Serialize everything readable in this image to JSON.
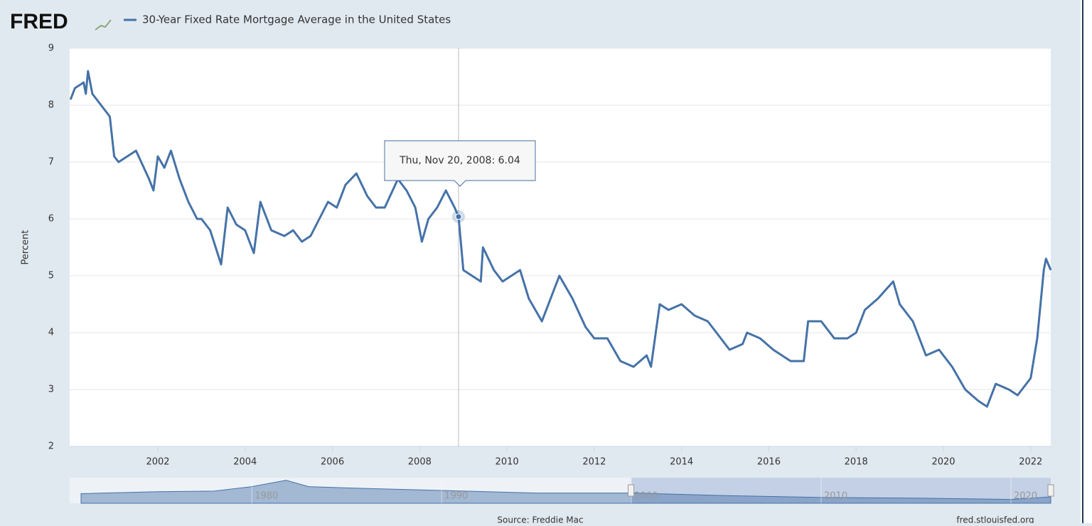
{
  "chart_data": {
    "type": "line",
    "logo": "FRED",
    "y_label": "Percent",
    "source": "Source: Freddie Mac",
    "site": "fred.stlouisfed.org",
    "xlim": [
      1999.98,
      2022.46
    ],
    "xticks": [
      2002,
      2004,
      2006,
      2008,
      2010,
      2012,
      2014,
      2016,
      2018,
      2020,
      2022
    ],
    "ylim": [
      2,
      9
    ],
    "yticks": [
      2,
      3,
      4,
      5,
      6,
      7,
      8,
      9
    ],
    "grid": true,
    "x": [
      2000.0,
      2000.1,
      2000.3,
      2000.35,
      2000.4,
      2000.5,
      2000.7,
      2000.9,
      2001.0,
      2001.1,
      2001.3,
      2001.5,
      2001.8,
      2001.9,
      2002.0,
      2002.15,
      2002.3,
      2002.5,
      2002.7,
      2002.9,
      2003.0,
      2003.2,
      2003.45,
      2003.6,
      2003.8,
      2004.0,
      2004.2,
      2004.35,
      2004.6,
      2004.9,
      2005.1,
      2005.3,
      2005.5,
      2005.7,
      2005.9,
      2006.1,
      2006.3,
      2006.55,
      2006.8,
      2007.0,
      2007.2,
      2007.5,
      2007.7,
      2007.9,
      2008.05,
      2008.2,
      2008.4,
      2008.6,
      2008.8,
      2008.89,
      2009.0,
      2009.2,
      2009.4,
      2009.45,
      2009.7,
      2009.9,
      2010.1,
      2010.3,
      2010.5,
      2010.8,
      2011.1,
      2011.2,
      2011.5,
      2011.8,
      2012.0,
      2012.3,
      2012.6,
      2012.9,
      2013.2,
      2013.3,
      2013.5,
      2013.7,
      2014.0,
      2014.3,
      2014.6,
      2014.9,
      2015.1,
      2015.4,
      2015.5,
      2015.8,
      2016.1,
      2016.5,
      2016.8,
      2016.9,
      2017.2,
      2017.5,
      2017.8,
      2018.0,
      2018.2,
      2018.5,
      2018.85,
      2019.0,
      2019.3,
      2019.6,
      2019.9,
      2020.2,
      2020.5,
      2020.8,
      2021.0,
      2021.2,
      2021.5,
      2021.7,
      2021.9,
      2022.0,
      2022.15,
      2022.3,
      2022.35,
      2022.46
    ],
    "series": [
      {
        "name": "30-Year Fixed Rate Mortgage Average in the United States",
        "color": "#4572a7",
        "values": [
          8.1,
          8.3,
          8.4,
          8.2,
          8.6,
          8.2,
          8.0,
          7.8,
          7.1,
          7.0,
          7.1,
          7.2,
          6.7,
          6.5,
          7.1,
          6.9,
          7.2,
          6.7,
          6.3,
          6.0,
          6.0,
          5.8,
          5.2,
          6.2,
          5.9,
          5.8,
          5.4,
          6.3,
          5.8,
          5.7,
          5.8,
          5.6,
          5.7,
          6.0,
          6.3,
          6.2,
          6.6,
          6.8,
          6.4,
          6.2,
          6.2,
          6.7,
          6.5,
          6.2,
          5.6,
          6.0,
          6.2,
          6.5,
          6.2,
          6.04,
          5.1,
          5.0,
          4.9,
          5.5,
          5.1,
          4.9,
          5.0,
          5.1,
          4.6,
          4.2,
          4.8,
          5.0,
          4.6,
          4.1,
          3.9,
          3.9,
          3.5,
          3.4,
          3.6,
          3.4,
          4.5,
          4.4,
          4.5,
          4.3,
          4.2,
          3.9,
          3.7,
          3.8,
          4.0,
          3.9,
          3.7,
          3.5,
          3.5,
          4.2,
          4.2,
          3.9,
          3.9,
          4.0,
          4.4,
          4.6,
          4.9,
          4.5,
          4.2,
          3.6,
          3.7,
          3.4,
          3.0,
          2.8,
          2.7,
          3.1,
          3.0,
          2.9,
          3.1,
          3.2,
          3.9,
          5.1,
          5.3,
          5.1
        ]
      }
    ],
    "hover": {
      "x": 2008.89,
      "text": "Thu, Nov 20, 2008: 6.04"
    },
    "navigator": {
      "xlim": [
        1970.4,
        2022.1
      ],
      "ylim": [
        0,
        20
      ],
      "xticks": [
        1980,
        1990,
        2000,
        2010,
        2020
      ],
      "x": [
        1971,
        1975,
        1978,
        1980,
        1981.8,
        1983,
        1985,
        1990,
        1995,
        2000,
        2005,
        2010,
        2015,
        2020,
        2022.1
      ],
      "values": [
        7.5,
        9,
        9.5,
        13,
        18,
        13,
        12,
        10,
        8,
        8,
        6,
        4.5,
        4,
        3,
        5
      ]
    }
  }
}
